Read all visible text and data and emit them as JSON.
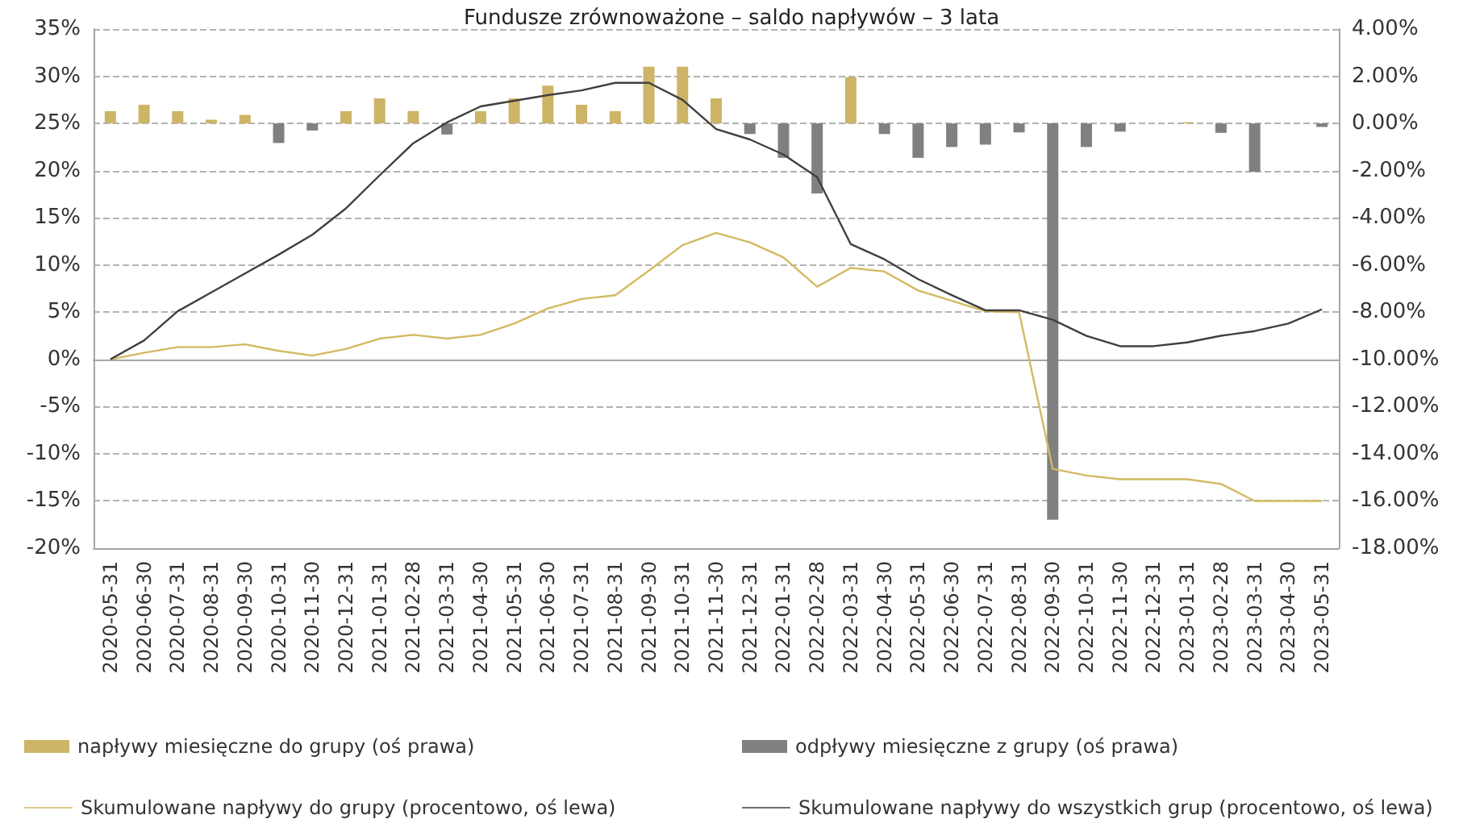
{
  "chart_data": {
    "type": "bar",
    "title": "Fundusze zrównoważone – saldo napływów – 3 lata",
    "categories": [
      "2020-05-31",
      "2020-06-30",
      "2020-07-31",
      "2020-08-31",
      "2020-09-30",
      "2020-10-31",
      "2020-11-30",
      "2020-12-31",
      "2021-01-31",
      "2021-02-28",
      "2021-03-31",
      "2021-04-30",
      "2021-05-31",
      "2021-06-30",
      "2021-07-31",
      "2021-08-31",
      "2021-09-30",
      "2021-10-31",
      "2021-11-30",
      "2021-12-31",
      "2022-01-31",
      "2022-02-28",
      "2022-03-31",
      "2022-04-30",
      "2022-05-31",
      "2022-06-30",
      "2022-07-31",
      "2022-08-31",
      "2022-09-30",
      "2022-10-31",
      "2022-11-30",
      "2022-12-31",
      "2023-01-31",
      "2023-02-28",
      "2023-03-31",
      "2023-04-30",
      "2023-05-31"
    ],
    "stacked": true,
    "series": [
      {
        "name": "napływy miesięczne do grupy (oś prawa)",
        "axis": "y2",
        "color": "#cdb467",
        "values": [
          0.52,
          0.79,
          0.52,
          0.16,
          0.36,
          null,
          null,
          0.52,
          1.06,
          0.52,
          null,
          0.52,
          1.06,
          1.6,
          0.79,
          0.52,
          2.4,
          2.4,
          1.06,
          null,
          null,
          null,
          1.96,
          null,
          null,
          null,
          null,
          null,
          null,
          null,
          null,
          null,
          0.05,
          null,
          null,
          null,
          null
        ]
      },
      {
        "name": "odpływy miesięczne z grupy (oś prawa)",
        "axis": "y2",
        "color": "#808080",
        "values": [
          null,
          null,
          null,
          null,
          null,
          -0.83,
          -0.3,
          null,
          null,
          null,
          -0.47,
          null,
          null,
          null,
          null,
          null,
          null,
          null,
          null,
          -0.45,
          -1.46,
          -2.97,
          null,
          -0.45,
          -1.46,
          -1.0,
          -0.9,
          -0.38,
          -16.8,
          -1.0,
          -0.35,
          null,
          null,
          -0.4,
          -2.05,
          null,
          -0.15
        ]
      },
      {
        "name": "Skumulowane napływy do grupy (procentowo, oś lewa)",
        "type": "line",
        "color": "#d4b962",
        "values": [
          0,
          0.7,
          1.3,
          1.3,
          1.6,
          0.9,
          0.4,
          1.1,
          2.2,
          2.6,
          2.2,
          2.6,
          3.8,
          5.4,
          6.4,
          6.8,
          9.4,
          12.1,
          13.4,
          12.4,
          10.8,
          7.7,
          9.7,
          9.3,
          7.3,
          6.2,
          5.1,
          5.0,
          -11.6,
          -12.3,
          -12.7,
          -12.7,
          -12.7,
          -13.2,
          -15,
          -15,
          -15
        ]
      },
      {
        "name": "Skumulowane napływy do wszystkich grup (procentowo, oś lewa)",
        "type": "line",
        "color": "#404040",
        "values": [
          0,
          2.0,
          5.1,
          7.1,
          9.1,
          11.1,
          13.2,
          16,
          19.5,
          22.9,
          25.1,
          26.8,
          27.4,
          28,
          28.5,
          29.3,
          29.3,
          27.5,
          24.4,
          23.3,
          21.7,
          19.3,
          12.2,
          10.6,
          8.5,
          6.8,
          5.2,
          5.2,
          4.2,
          2.5,
          1.4,
          1.4,
          1.8,
          2.5,
          3.0,
          3.8,
          5.3
        ]
      }
    ],
    "ylim": [
      -20,
      35
    ],
    "yticks": [
      {
        "value": -20,
        "label": "-20%"
      },
      {
        "value": -15,
        "label": "-15%"
      },
      {
        "value": -10,
        "label": "-10%"
      },
      {
        "value": -5,
        "label": "-5%"
      },
      {
        "value": 0,
        "label": "0%"
      },
      {
        "value": 5,
        "label": "5%"
      },
      {
        "value": 10,
        "label": "10%"
      },
      {
        "value": 15,
        "label": "15%"
      },
      {
        "value": 20,
        "label": "20%"
      },
      {
        "value": 25,
        "label": "25%"
      },
      {
        "value": 30,
        "label": "30%"
      },
      {
        "value": 35,
        "label": "35%"
      }
    ],
    "y2lim": [
      -18,
      4
    ],
    "y2ticks": [
      {
        "value": -18,
        "label": "-18.00%"
      },
      {
        "value": -16,
        "label": "-16.00%"
      },
      {
        "value": -14,
        "label": "-14.00%"
      },
      {
        "value": -12,
        "label": "-12.00%"
      },
      {
        "value": -10,
        "label": "-10.00%"
      },
      {
        "value": -8,
        "label": "-8.00%"
      },
      {
        "value": -6,
        "label": "-6.00%"
      },
      {
        "value": -4,
        "label": "-4.00%"
      },
      {
        "value": -2,
        "label": "-2.00%"
      },
      {
        "value": 0,
        "label": "0.00%"
      },
      {
        "value": 2,
        "label": "2.00%"
      },
      {
        "value": 4,
        "label": "4.00%"
      }
    ],
    "grid": "y",
    "legend": "bottom",
    "marker": "none",
    "line_style": "solid"
  }
}
